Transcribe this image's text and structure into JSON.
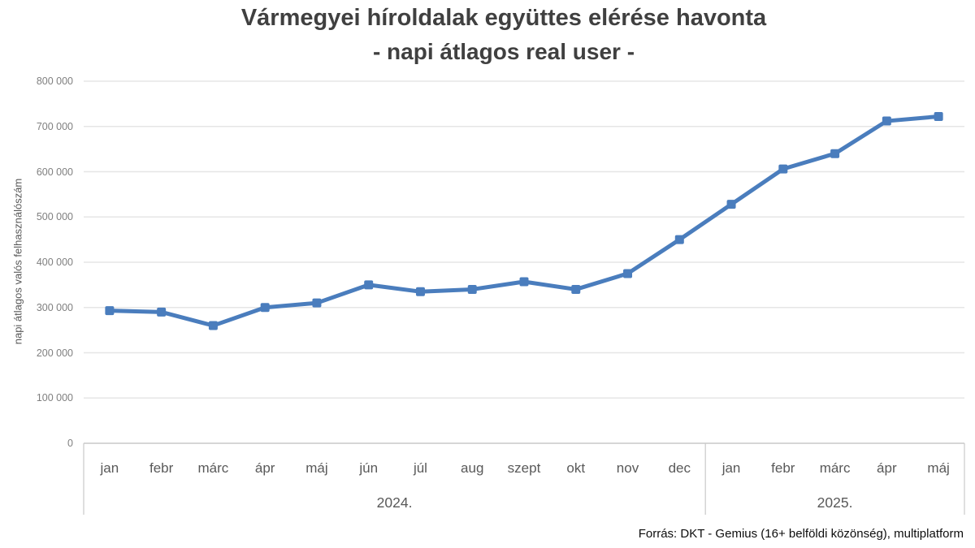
{
  "title": {
    "line1": "Vármegyei híroldalak együttes elérése havonta",
    "line2": "- napi átlagos real user -"
  },
  "y_axis": {
    "title": "napi átlagos valós felhasználószám",
    "tick_labels": [
      "0",
      "100 000",
      "200 000",
      "300 000",
      "400 000",
      "500 000",
      "600 000",
      "700 000",
      "800 000"
    ]
  },
  "footer": {
    "source": "Forrás: DKT - Gemius (16+ belföldi közönség), multiplatform"
  },
  "colors": {
    "line": "#4a7dbd",
    "gridline": "#e6e6e6",
    "axis": "#c9c9c9",
    "title_text": "#404040",
    "tick_text": "#7f7f7f"
  },
  "chart_data": {
    "type": "line",
    "title": "Vármegyei híroldalak együttes elérése havonta - napi átlagos real user -",
    "xlabel": "",
    "ylabel": "napi átlagos valós felhasználószám",
    "ylim": [
      0,
      800000
    ],
    "y_tick_step": 100000,
    "grid": true,
    "legend": false,
    "marker": "square",
    "categories": [
      "jan",
      "febr",
      "márc",
      "ápr",
      "máj",
      "jún",
      "júl",
      "aug",
      "szept",
      "okt",
      "nov",
      "dec",
      "jan",
      "febr",
      "márc",
      "ápr",
      "máj"
    ],
    "category_groups": [
      {
        "label": "2024.",
        "count": 12
      },
      {
        "label": "2025.",
        "count": 5
      }
    ],
    "series": [
      {
        "name": "napi átlagos valós felhasználószám",
        "color": "#4a7dbd",
        "values": [
          293000,
          290000,
          260000,
          300000,
          310000,
          350000,
          335000,
          340000,
          357000,
          340000,
          375000,
          450000,
          528000,
          606000,
          640000,
          712000,
          722000
        ]
      }
    ]
  }
}
